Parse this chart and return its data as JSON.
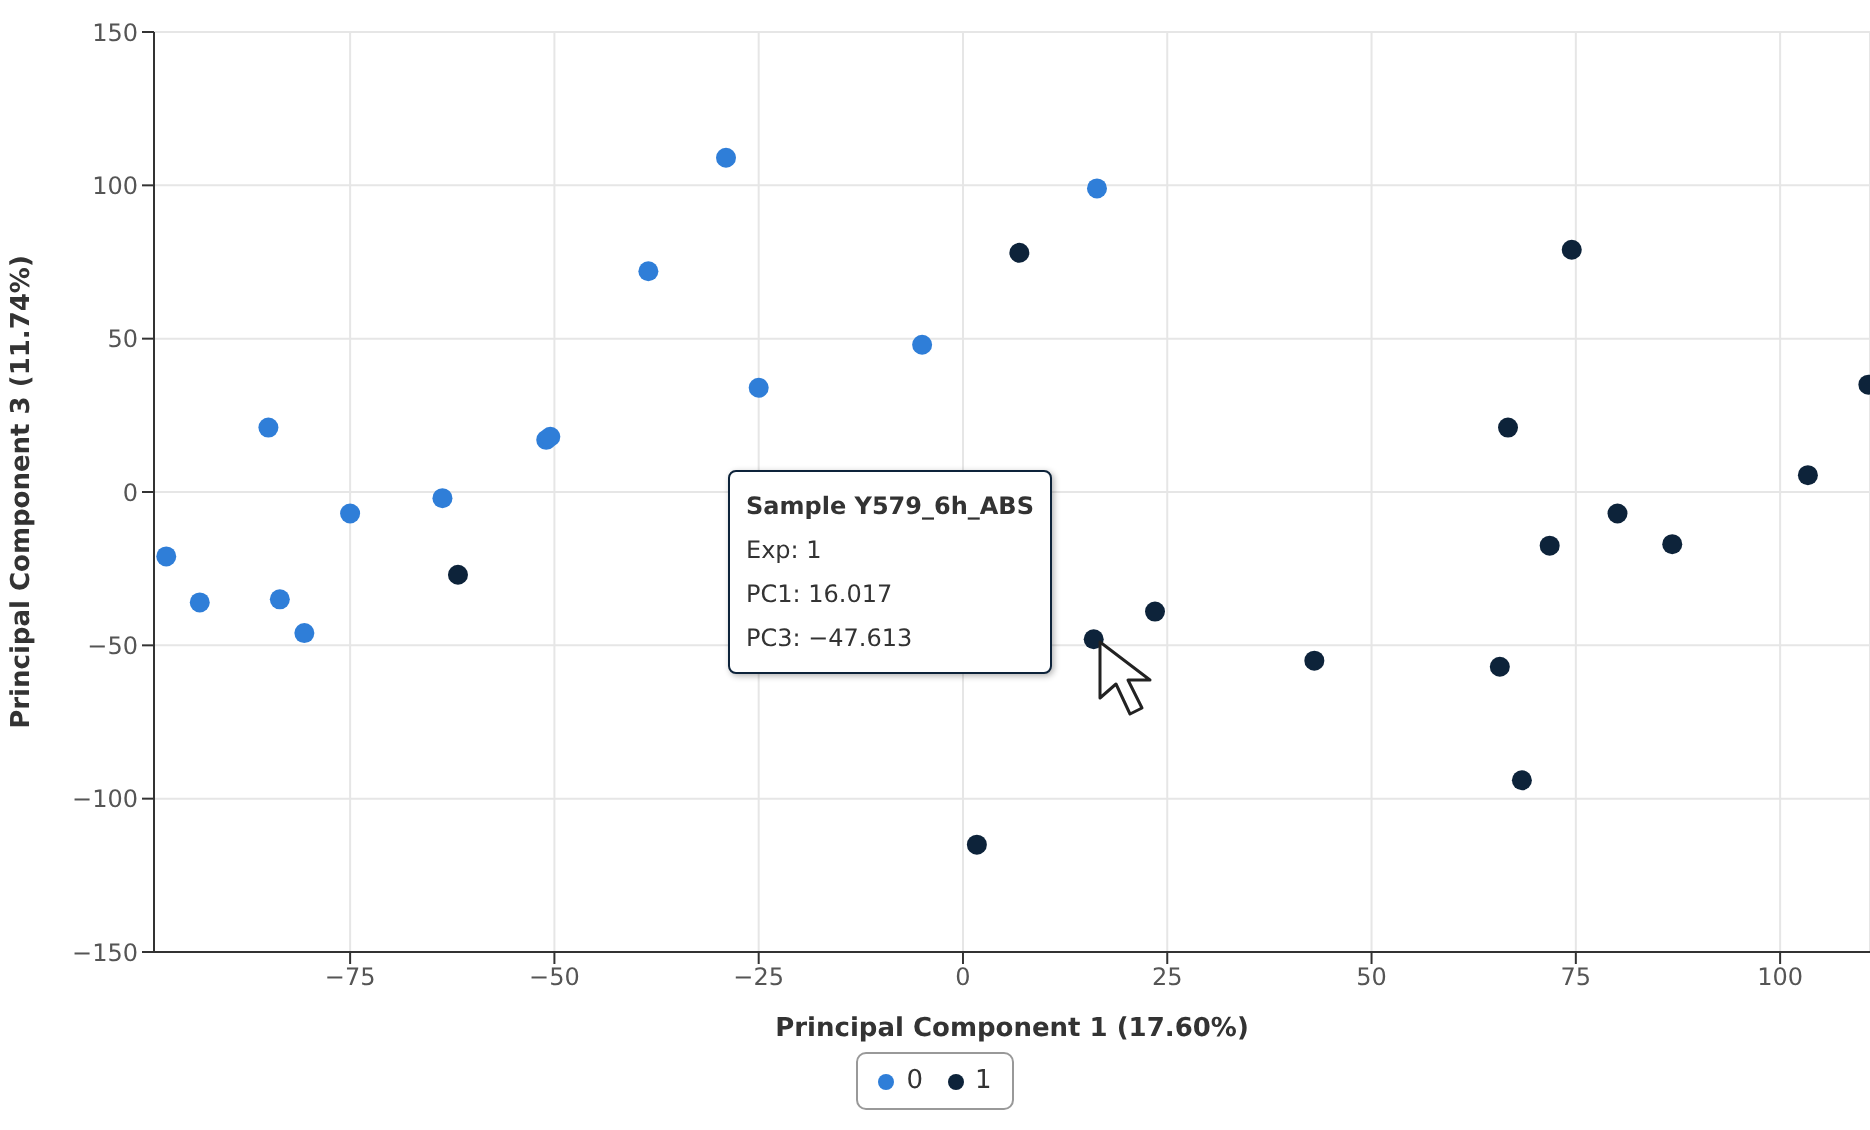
{
  "chart_data": {
    "type": "scatter",
    "xlabel": "Principal Component 1 (17.60%)",
    "ylabel": "Principal Component 3 (11.74%)",
    "xlim": [
      -99,
      111
    ],
    "xticks": [
      -75,
      -50,
      -25,
      0,
      25,
      50,
      75,
      100
    ],
    "ylim": [
      -150,
      150
    ],
    "yticks": [
      -150,
      -100,
      -50,
      0,
      50,
      100,
      150
    ],
    "grid": true,
    "legend": "bottom",
    "marker": "circle",
    "series": [
      {
        "name": "0",
        "color": "#2f7ed8",
        "x": [
          -97.5,
          -93.4,
          -83.6,
          -80.6,
          -85,
          -75,
          -63.7,
          -51,
          -50.5,
          -38.5,
          -29,
          -25,
          -5,
          16.4
        ],
        "values": [
          -21,
          -36,
          -35,
          -46,
          21,
          -7,
          -2,
          17,
          18,
          72,
          109,
          34,
          48,
          99
        ]
      },
      {
        "name": "1",
        "color": "#0d233a",
        "x": [
          -61.8,
          6.9,
          1.7,
          16,
          23.5,
          43,
          66.7,
          74.5,
          65.7,
          68.4,
          71.8,
          80.1,
          86.8,
          103.4,
          110.8
        ],
        "values": [
          -27,
          78,
          -115,
          -48,
          -39,
          -55,
          21,
          79,
          -57,
          -94,
          -17.5,
          -7,
          -17,
          5.5,
          35
        ]
      }
    ],
    "annotations": [
      "Sample Y579_6h_ABS\nExp: 1\nPC1: 16.017\nPC3: −47.613"
    ]
  }
}
